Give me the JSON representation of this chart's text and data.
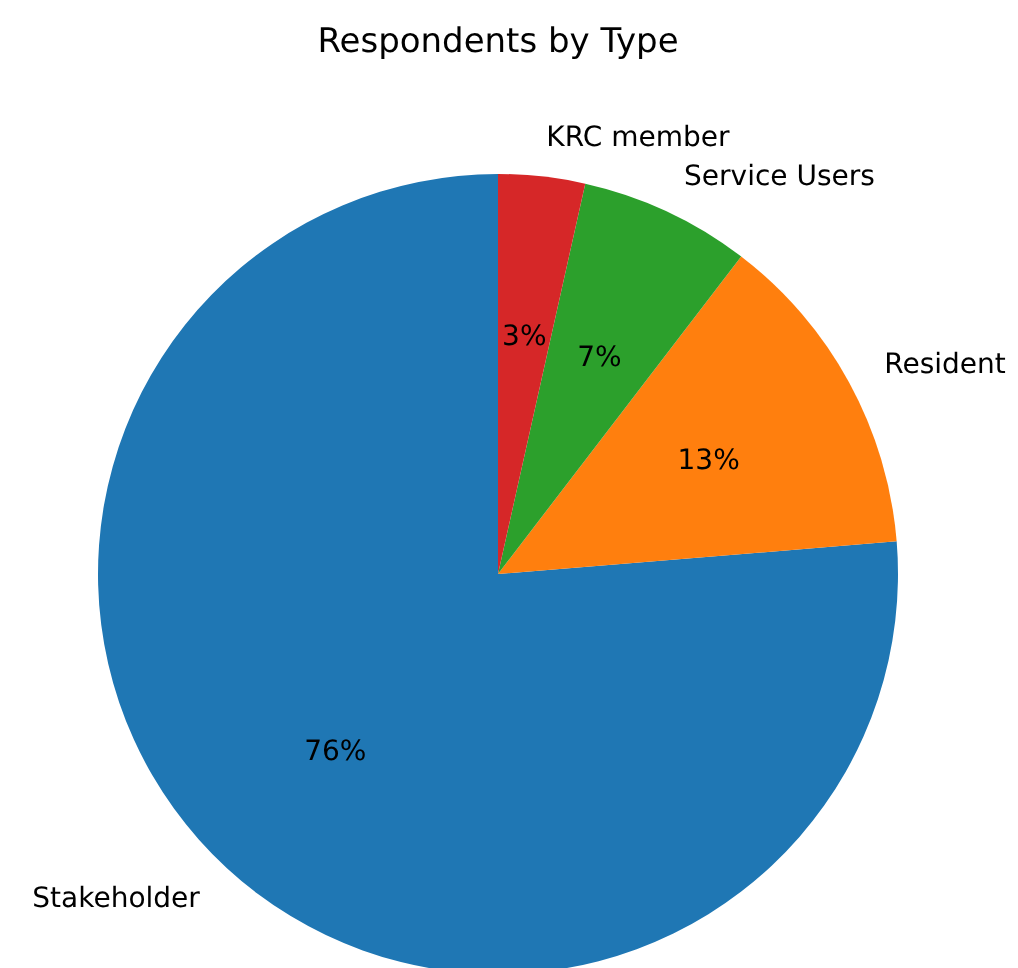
{
  "chart_data": {
    "type": "pie",
    "title": "Respondents by Type",
    "categories": [
      "Stakeholder",
      "Resident",
      "Service Users",
      "KRC member"
    ],
    "values": [
      76.3,
      13.3,
      6.9,
      3.5
    ],
    "value_labels": [
      "76%",
      "13%",
      "7%",
      "3%"
    ],
    "colors": [
      "#1f77b4",
      "#ff7f0e",
      "#2ca02c",
      "#d62728"
    ]
  }
}
